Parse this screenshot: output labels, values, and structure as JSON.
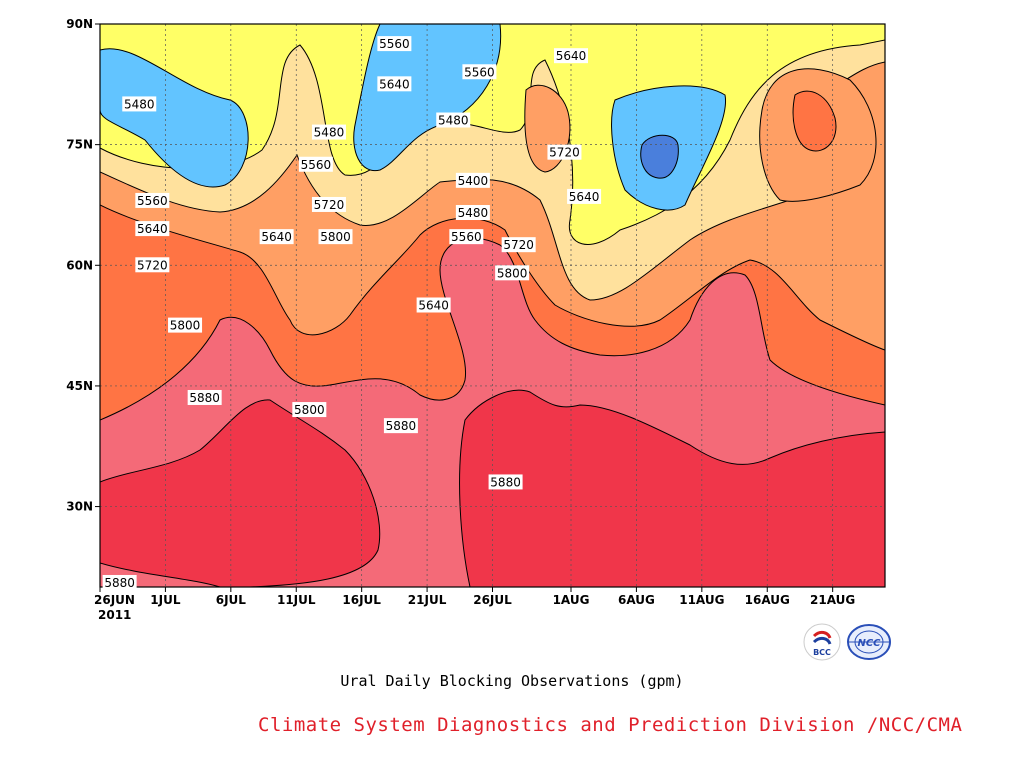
{
  "chart_data": {
    "type": "heatmap",
    "subtype": "filled-contour",
    "title": "Ural Daily Blocking Observations (gpm)",
    "x_ticks": [
      "26JUN",
      "1JUL",
      "6JUL",
      "11JUL",
      "16JUL",
      "21JUL",
      "26JUL",
      "1AUG",
      "6AUG",
      "11AUG",
      "16AUG",
      "21AUG"
    ],
    "x_year_label": "2011",
    "y_ticks": [
      "90N",
      "75N",
      "60N",
      "45N",
      "30N"
    ],
    "contour_levels": [
      5400,
      5480,
      5560,
      5640,
      5720,
      5800,
      5880
    ],
    "fill_colors": {
      "5320": "#4a7fdc",
      "5400": "#62c4ff",
      "5480": "#ffff66",
      "5560": "#ffe19d",
      "5640": "#ff9f64",
      "5720": "#ff7444",
      "5800": "#f46a78",
      "5880": "#f0364a"
    },
    "contour_labels": [
      {
        "text": "5480",
        "day": 3,
        "lat": 80
      },
      {
        "text": "5560",
        "day": 4,
        "lat": 68
      },
      {
        "text": "5640",
        "day": 4,
        "lat": 64.5
      },
      {
        "text": "5720",
        "day": 4,
        "lat": 60
      },
      {
        "text": "5800",
        "day": 6.5,
        "lat": 52.5
      },
      {
        "text": "5880",
        "day": 8,
        "lat": 43.5
      },
      {
        "text": "5880",
        "day": 1.5,
        "lat": 20.5
      },
      {
        "text": "5640",
        "day": 13.5,
        "lat": 63.5
      },
      {
        "text": "5560",
        "day": 16.5,
        "lat": 72.5
      },
      {
        "text": "5480",
        "day": 17.5,
        "lat": 76.5
      },
      {
        "text": "5720",
        "day": 17.5,
        "lat": 67.5
      },
      {
        "text": "5800",
        "day": 18,
        "lat": 63.5
      },
      {
        "text": "5800",
        "day": 16,
        "lat": 42
      },
      {
        "text": "5560",
        "day": 22.5,
        "lat": 87.5
      },
      {
        "text": "5640",
        "day": 22.5,
        "lat": 82.5
      },
      {
        "text": "5880",
        "day": 23,
        "lat": 40
      },
      {
        "text": "5640",
        "day": 25.5,
        "lat": 55
      },
      {
        "text": "5480",
        "day": 27,
        "lat": 78
      },
      {
        "text": "5560",
        "day": 29,
        "lat": 84
      },
      {
        "text": "5400",
        "day": 28.5,
        "lat": 70.5
      },
      {
        "text": "5480",
        "day": 28.5,
        "lat": 66.5
      },
      {
        "text": "5560",
        "day": 28,
        "lat": 63.5
      },
      {
        "text": "5720",
        "day": 32,
        "lat": 62.5
      },
      {
        "text": "5800",
        "day": 31.5,
        "lat": 59
      },
      {
        "text": "5880",
        "day": 31,
        "lat": 33
      },
      {
        "text": "5640",
        "day": 36,
        "lat": 86
      },
      {
        "text": "5720",
        "day": 35.5,
        "lat": 74
      },
      {
        "text": "5640",
        "day": 37,
        "lat": 68.5
      },
      {
        "text": "5800",
        "day": 16,
        "lat": 42
      }
    ]
  },
  "caption": {
    "title": "Ural Daily Blocking Observations (gpm)",
    "credit": "Climate System Diagnostics and Prediction Division /NCC/CMA"
  },
  "logos": [
    {
      "name": "bcc-logo",
      "text": "BCC",
      "color": "#1c3f9e"
    },
    {
      "name": "ncc-logo",
      "text": "NCC",
      "color": "#2a4fb8"
    }
  ]
}
